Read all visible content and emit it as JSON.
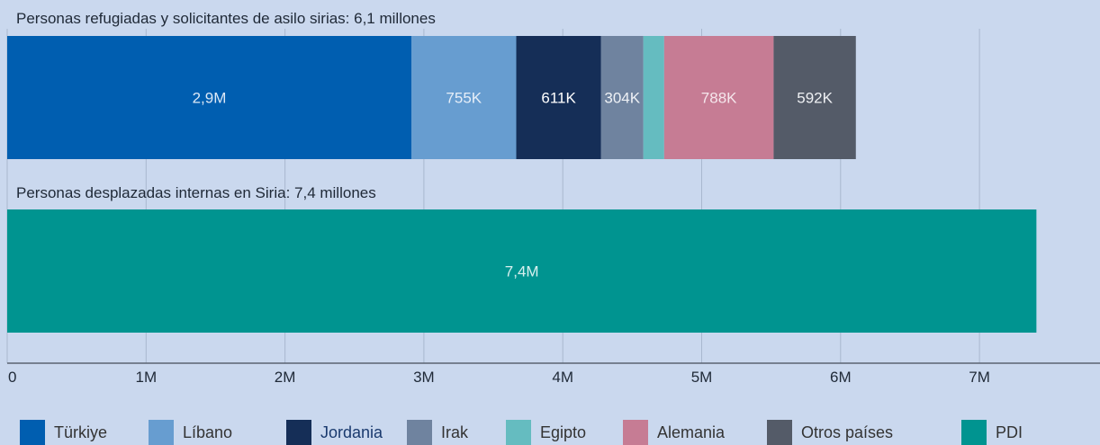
{
  "chart_data": {
    "type": "bar",
    "orientation": "horizontal",
    "stacked": true,
    "xlim": [
      0,
      7800000
    ],
    "x_ticks": [
      {
        "value": 0,
        "label": "0"
      },
      {
        "value": 1000000,
        "label": "1M"
      },
      {
        "value": 2000000,
        "label": "2M"
      },
      {
        "value": 3000000,
        "label": "3M"
      },
      {
        "value": 4000000,
        "label": "4M"
      },
      {
        "value": 5000000,
        "label": "5M"
      },
      {
        "value": 6000000,
        "label": "6M"
      },
      {
        "value": 7000000,
        "label": "7M"
      }
    ],
    "grid": true,
    "legend_position": "bottom",
    "bars": [
      {
        "title": "Personas refugiadas y solicitantes de asilo sirias: 6,1 millones",
        "segments": [
          {
            "series": "Türkiye",
            "value": 2910000,
            "label": "2,9M"
          },
          {
            "series": "Líbano",
            "value": 755000,
            "label": "755K"
          },
          {
            "series": "Jordania",
            "value": 611000,
            "label": "611K"
          },
          {
            "series": "Irak",
            "value": 304000,
            "label": "304K"
          },
          {
            "series": "Egipto",
            "value": 150000,
            "label": ""
          },
          {
            "series": "Alemania",
            "value": 788000,
            "label": "788K"
          },
          {
            "series": "Otros países",
            "value": 592000,
            "label": "592K"
          }
        ]
      },
      {
        "title": "Personas desplazadas internas en Siria: 7,4 millones",
        "segments": [
          {
            "series": "PDI",
            "value": 7410000,
            "label": "7,4M"
          }
        ]
      }
    ],
    "series": [
      {
        "name": "Türkiye",
        "color": "#005eb0",
        "label_color": "#dce8f6"
      },
      {
        "name": "Líbano",
        "color": "#679dd0",
        "label_color": "#e6eef8"
      },
      {
        "name": "Jordania",
        "color": "#152e57",
        "label_color": "#ffffff"
      },
      {
        "name": "Irak",
        "color": "#6f839f",
        "label_color": "#eef1f5"
      },
      {
        "name": "Egipto",
        "color": "#65bcc0",
        "label_color": "#ffffff"
      },
      {
        "name": "Alemania",
        "color": "#c67c94",
        "label_color": "#f5e6ec"
      },
      {
        "name": "Otros países",
        "color": "#545b68",
        "label_color": "#eef0f3"
      },
      {
        "name": "PDI",
        "color": "#009490",
        "label_color": "#d8f0ef"
      }
    ],
    "legend_text_colors": {
      "Jordania": "#1a3a6e"
    }
  }
}
